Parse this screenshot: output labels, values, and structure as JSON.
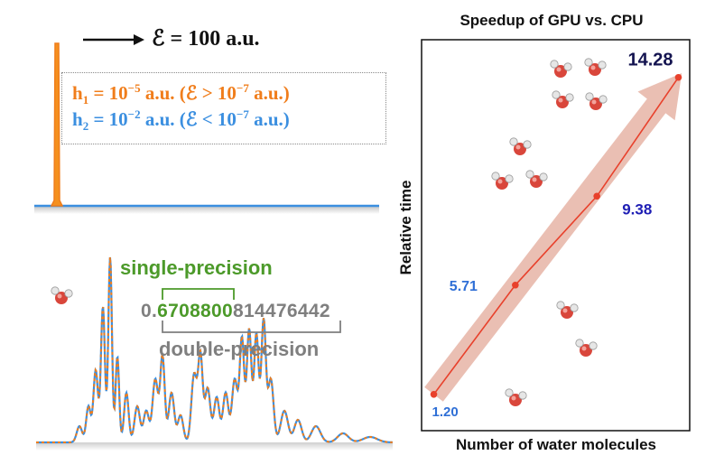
{
  "top_panel": {
    "field_label": "ℰ = 100 a.u.",
    "h1": {
      "base": "h",
      "sub": "1",
      "eq": " = 10",
      "exp": "−5",
      "unit": " a.u. (ℰ > 10",
      "exp2": "−7",
      "unit2": " a.u.)"
    },
    "h2": {
      "base": "h",
      "sub": "2",
      "eq": " = 10",
      "exp": "−2",
      "unit": " a.u. (ℰ < 10",
      "exp2": "−7",
      "unit2": " a.u.)"
    },
    "colors": {
      "h1": "#f07d1b",
      "h2": "#3b8fe0"
    }
  },
  "spectrum_panel": {
    "single_label": "single-precision",
    "double_label": "double-precision",
    "number_prefix": "0.",
    "number_single_part": "6708800",
    "number_rest": "814476442",
    "colors": {
      "single": "#4c9a2a",
      "double": "#7f7f7f"
    }
  },
  "chart_data": {
    "type": "line",
    "title": "Speedup of GPU vs. CPU",
    "xlabel": "Number of water molecules",
    "ylabel": "Relative time",
    "x": [
      1,
      2,
      3,
      4
    ],
    "values": [
      1.2,
      5.71,
      9.38,
      14.28
    ],
    "value_labels": [
      "1.20",
      "5.71",
      "9.38",
      "14.28"
    ],
    "label_colors": [
      "#2f6fd6",
      "#2f6fd6",
      "#1e1eb4",
      "#141450"
    ],
    "ylim": [
      0,
      15.5
    ],
    "xlim": [
      0.95,
      4.05
    ],
    "grid": false,
    "line_color": "#e8412c",
    "arrow_color": "#e3a99a",
    "molecule_icon": "water-molecule-icon"
  }
}
